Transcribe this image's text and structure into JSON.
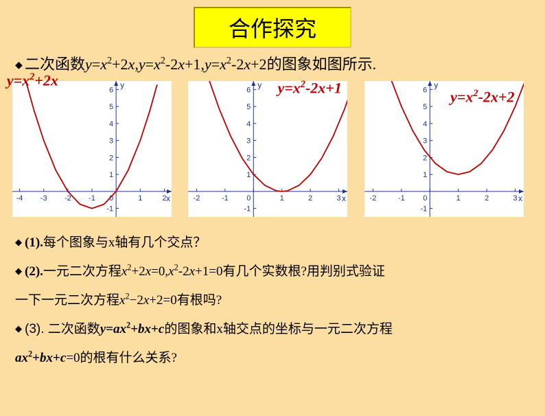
{
  "title": "合作探究",
  "intro": {
    "prefix": "二次函数",
    "suffix": "的图象如图所示."
  },
  "equations": {
    "eq1_y": "y",
    "eq1_eq": "=",
    "eq1_x": "x",
    "eq1_exp": "2",
    "eq1_rest": "+2",
    "eq1_xvar": "x",
    "eq2_y": "y",
    "eq2_eq": "=",
    "eq2_x": "x",
    "eq2_exp": "2",
    "eq2_rest": "-2",
    "eq2_xvar": "x",
    "eq2_c": "+1",
    "eq3_y": "y",
    "eq3_eq": "=",
    "eq3_x": "x",
    "eq3_exp": "2",
    "eq3_rest": "-2",
    "eq3_xvar": "x",
    "eq3_c": "+2"
  },
  "chart_style": {
    "background": "#ffffff",
    "axis_color": "#1a3399",
    "curve_color": "#c00000",
    "curve_width": 1.8,
    "tick_font_size": 11,
    "label_font_size": 12
  },
  "chart1": {
    "type": "parabola",
    "xlim": [
      -4.3,
      2.3
    ],
    "ylim": [
      -1.5,
      6.5
    ],
    "xticks": [
      -4,
      -3,
      -2,
      -1,
      0,
      1,
      2
    ],
    "yticks": [
      -1,
      1,
      2,
      3,
      4,
      5,
      6
    ],
    "vertex": [
      -1,
      -1
    ],
    "a": 1,
    "curve_x": [
      -3.7,
      -3.4,
      -3,
      -2.5,
      -2,
      -1.5,
      -1,
      -0.5,
      0,
      0.5,
      1,
      1.4,
      1.7
    ],
    "xlabel": "x",
    "ylabel": "y"
  },
  "chart2": {
    "type": "parabola",
    "xlim": [
      -2.3,
      3.3
    ],
    "ylim": [
      -1.5,
      6.5
    ],
    "xticks": [
      -2,
      -1,
      0,
      1,
      2,
      3
    ],
    "yticks": [
      -1,
      1,
      2,
      3,
      4,
      5,
      6
    ],
    "vertex": [
      1,
      0
    ],
    "a": 1,
    "curve_x": [
      -1.55,
      -1.2,
      -0.8,
      -0.4,
      0,
      0.4,
      0.8,
      1,
      1.2,
      1.6,
      2,
      2.4,
      2.8,
      3.2,
      3.55
    ],
    "xlabel": "x",
    "ylabel": "y"
  },
  "chart3": {
    "type": "parabola",
    "xlim": [
      -2.3,
      3.3
    ],
    "ylim": [
      -1.5,
      6.5
    ],
    "xticks": [
      -2,
      -1,
      0,
      1,
      2,
      3
    ],
    "yticks": [
      -1,
      1,
      2,
      3,
      4,
      5,
      6
    ],
    "vertex": [
      1,
      1
    ],
    "a": 1,
    "curve_x": [
      -1.35,
      -1,
      -0.6,
      -0.2,
      0.2,
      0.6,
      1,
      1.4,
      1.8,
      2.2,
      2.6,
      3,
      3.35
    ],
    "xlabel": "x",
    "ylabel": "y"
  },
  "q1": "每个图象与x轴有几个交点？",
  "q2a": "一元二次方程",
  "q2b": "有几个实数根?用判别式验证",
  "q2c": "一下一元二次方程",
  "q2d": "有根吗?",
  "q3a": "(3). 二次函数",
  "q3b": "的图象和x轴交点的坐标与一元二次方程",
  "q3c": "的根有什么关系?",
  "num1": "(1).",
  "num2": "(2)."
}
